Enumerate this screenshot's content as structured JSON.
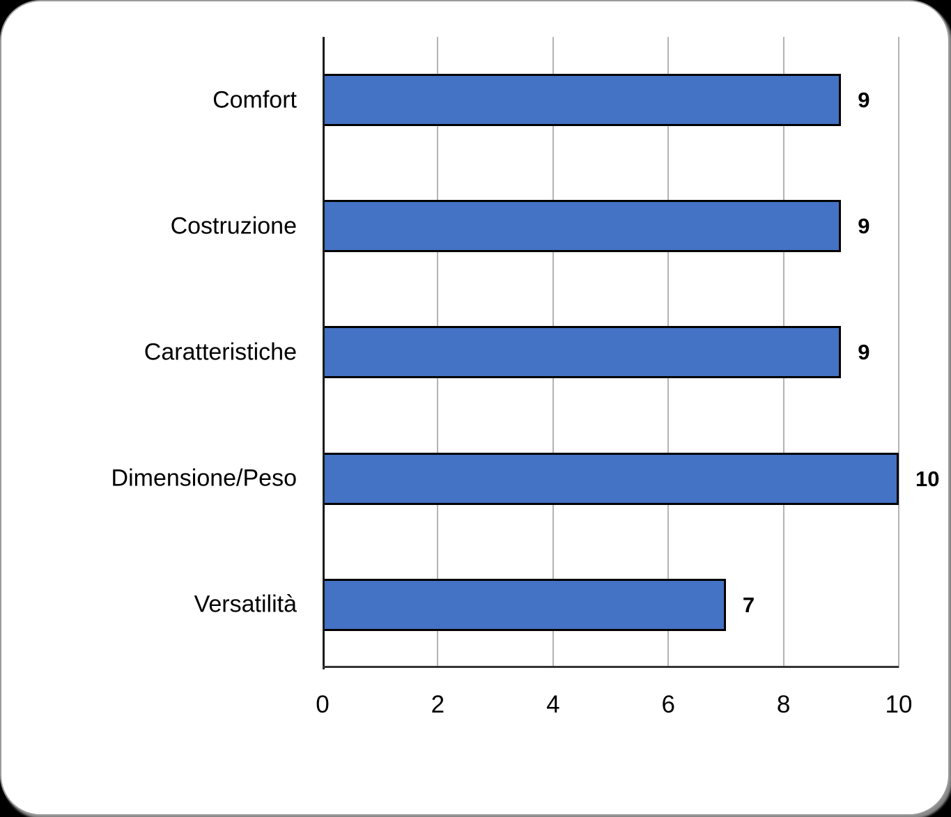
{
  "chart_data": {
    "type": "bar",
    "orientation": "horizontal",
    "title": "",
    "xlabel": "",
    "ylabel": "",
    "categories": [
      "Comfort",
      "Costruzione",
      "Caratteristiche",
      "Dimensione/Peso",
      "Versatilità"
    ],
    "values": [
      9,
      9,
      9,
      10,
      7
    ],
    "data_labels": [
      "9",
      "9",
      "9",
      "10",
      "7"
    ],
    "xlim": [
      0,
      10
    ],
    "xticks": [
      0,
      2,
      4,
      6,
      8,
      10
    ],
    "grid": "vertical-gridlines-on",
    "legend": "none",
    "colors": {
      "bar_fill": "#4472C4",
      "bar_border": "#000000",
      "gridline": "#B3B3B3",
      "axis": "#1A1A1A",
      "text": "#000000",
      "card_background": "#FFFFFF",
      "page_background": "#000000"
    }
  }
}
